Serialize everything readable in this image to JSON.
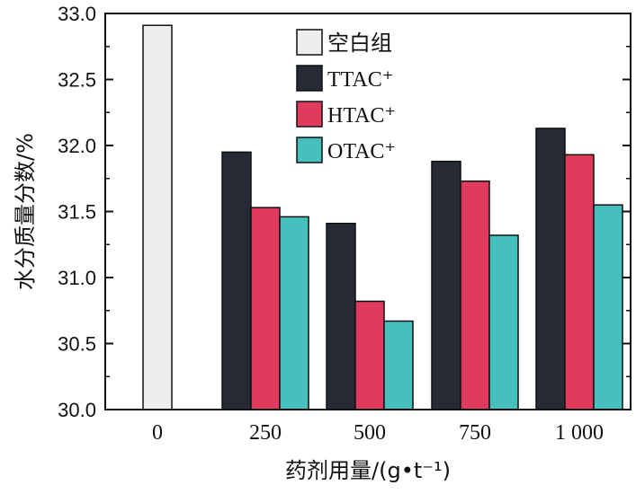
{
  "chart_data": {
    "type": "bar",
    "categories": [
      "0",
      "250",
      "500",
      "750",
      "1 000"
    ],
    "series": [
      {
        "name": "空白组",
        "color": "#eeeeee",
        "values": [
          32.91,
          null,
          null,
          null,
          null
        ]
      },
      {
        "name": "TTAC⁺",
        "color": "#252a35",
        "values": [
          null,
          31.95,
          31.41,
          31.88,
          32.13
        ]
      },
      {
        "name": "HTAC⁺",
        "color": "#e03a5e",
        "values": [
          null,
          31.53,
          30.82,
          31.73,
          31.93
        ]
      },
      {
        "name": "OTAC⁺",
        "color": "#47bfbd",
        "values": [
          null,
          31.46,
          30.67,
          31.32,
          31.55
        ]
      }
    ],
    "xlabel": "药剂用量/(g•t⁻¹)",
    "ylabel": "水分质量分数/%",
    "ylim": [
      30.0,
      33.0
    ],
    "yticks": [
      "30.0",
      "30.5",
      "31.0",
      "31.5",
      "32.0",
      "32.5",
      "33.0"
    ],
    "legend": "top-center",
    "grid": false
  }
}
